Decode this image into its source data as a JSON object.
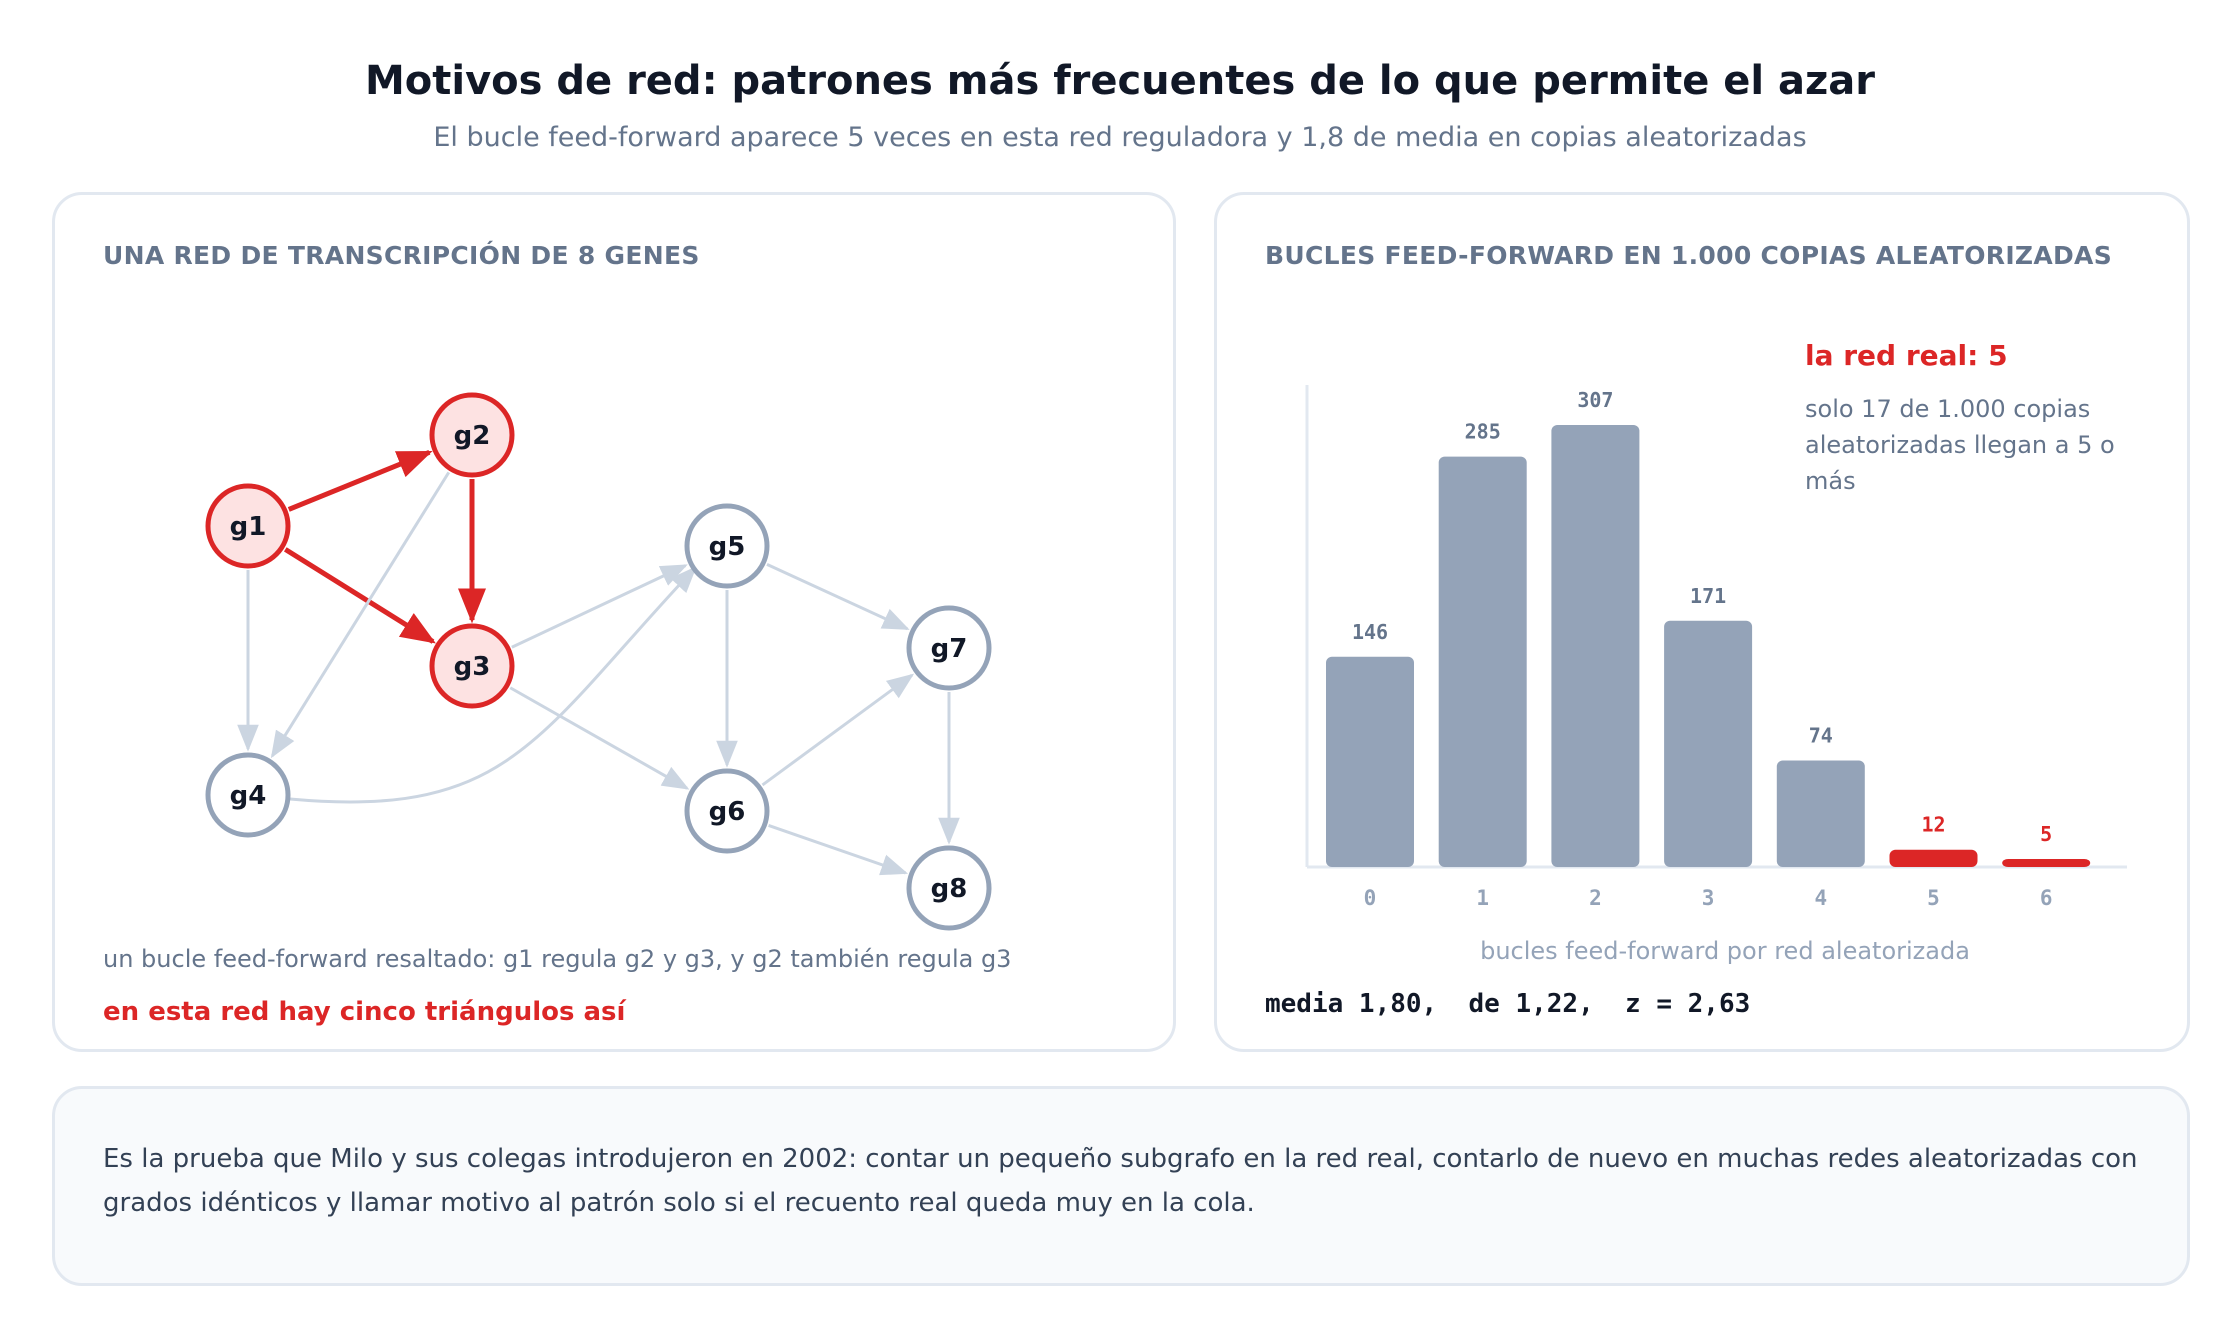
{
  "header": {
    "title": "Motivos de red: patrones más frecuentes de lo que permite el azar",
    "subtitle": "El bucle feed-forward aparece 5 veces en esta red reguladora y 1,8 de media en copias aleatorizadas"
  },
  "network_panel": {
    "title": "UNA RED DE TRANSCRIPCIÓN DE 8 GENES",
    "nodes": [
      {
        "id": "g1",
        "highlighted": true
      },
      {
        "id": "g2",
        "highlighted": true
      },
      {
        "id": "g3",
        "highlighted": true
      },
      {
        "id": "g4",
        "highlighted": false
      },
      {
        "id": "g5",
        "highlighted": false
      },
      {
        "id": "g6",
        "highlighted": false
      },
      {
        "id": "g7",
        "highlighted": false
      },
      {
        "id": "g8",
        "highlighted": false
      }
    ],
    "edges": [
      {
        "from": "g1",
        "to": "g2",
        "highlighted": true
      },
      {
        "from": "g1",
        "to": "g3",
        "highlighted": true
      },
      {
        "from": "g2",
        "to": "g3",
        "highlighted": true
      },
      {
        "from": "g1",
        "to": "g4",
        "highlighted": false
      },
      {
        "from": "g2",
        "to": "g4",
        "highlighted": false
      },
      {
        "from": "g3",
        "to": "g5",
        "highlighted": false
      },
      {
        "from": "g3",
        "to": "g6",
        "highlighted": false
      },
      {
        "from": "g4",
        "to": "g5",
        "highlighted": false,
        "curved": true
      },
      {
        "from": "g5",
        "to": "g6",
        "highlighted": false
      },
      {
        "from": "g5",
        "to": "g7",
        "highlighted": false
      },
      {
        "from": "g6",
        "to": "g7",
        "highlighted": false
      },
      {
        "from": "g6",
        "to": "g8",
        "highlighted": false
      },
      {
        "from": "g7",
        "to": "g8",
        "highlighted": false
      }
    ],
    "caption": "un bucle feed-forward resaltado: g1 regula g2 y g3, y g2 también regula g3",
    "highlight_note": "en esta red hay cinco triángulos así"
  },
  "histogram_panel": {
    "title": "BUCLES FEED-FORWARD EN 1.000 COPIAS ALEATORIZADAS",
    "real_label": "la red real: 5",
    "real_note": "solo 17 de 1.000 copias aleatorizadas llegan a 5 o más",
    "stats": "media 1,80,  de 1,22,  z = 2,63"
  },
  "chart_data": {
    "type": "bar",
    "categories": [
      "0",
      "1",
      "2",
      "3",
      "4",
      "5",
      "6"
    ],
    "values": [
      146,
      285,
      307,
      171,
      74,
      12,
      5
    ],
    "value_labels": [
      "146",
      "285",
      "307",
      "171",
      "74",
      "12",
      "5"
    ],
    "highlighted": [
      false,
      false,
      false,
      false,
      false,
      true,
      true
    ],
    "xlabel": "bucles feed-forward por red aleatorizada",
    "ylabel": "",
    "ylim": [
      0,
      307
    ],
    "grid": false,
    "colors": {
      "normal": "#94a3b8",
      "highlight": "#dc2626",
      "label_normal": "#64748b",
      "label_highlight": "#dc2626",
      "tick": "#94a3b8"
    }
  },
  "footer": {
    "text": "Es la prueba que Milo y sus colegas introdujeron en 2002: contar un pequeño subgrafo en la red real, contarlo de nuevo en muchas redes aleatorizadas con grados idénticos y llamar motivo al patrón solo si el recuento real queda muy en la cola."
  },
  "colors": {
    "accent": "#dc2626",
    "node_fill_highlight": "#fde2e2",
    "node_stroke": "#94a3b8",
    "edge": "#cbd5e1"
  }
}
